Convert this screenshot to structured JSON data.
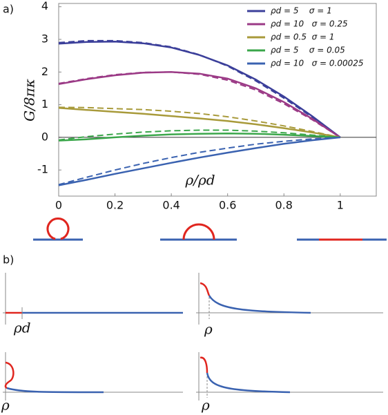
{
  "chart_data": {
    "type": "line",
    "ylabel": "G/8πκ",
    "xlabel": "ρ/ρd",
    "x": [
      0,
      0.1,
      0.2,
      0.3,
      0.4,
      0.5,
      0.6,
      0.7,
      0.8,
      0.9,
      1.0
    ],
    "xlim": [
      0,
      1.128
    ],
    "ylim": [
      -1.8,
      4.1
    ],
    "xticks": [
      0,
      0.2,
      0.4,
      0.6,
      0.8,
      1
    ],
    "yticks": [
      -1,
      0,
      1,
      2,
      3,
      4
    ],
    "zero_line": true,
    "series": [
      {
        "name": "ρd = 5    σ = 1",
        "color": "#3b3f9a",
        "values": [
          2.87,
          2.92,
          2.93,
          2.88,
          2.75,
          2.52,
          2.2,
          1.77,
          1.25,
          0.65,
          0
        ],
        "dashed_values": [
          2.9,
          2.96,
          2.96,
          2.9,
          2.77,
          2.53,
          2.18,
          1.73,
          1.2,
          0.62,
          0
        ]
      },
      {
        "name": "ρd = 10   σ = 0.25",
        "color": "#9b3a86",
        "values": [
          1.63,
          1.78,
          1.9,
          1.98,
          2.0,
          1.95,
          1.8,
          1.5,
          1.08,
          0.57,
          0
        ],
        "dashed_values": [
          1.65,
          1.8,
          1.92,
          1.99,
          2.0,
          1.93,
          1.75,
          1.45,
          1.03,
          0.54,
          0
        ]
      },
      {
        "name": "ρd = 0.5  σ = 1",
        "color": "#a89a3a",
        "values": [
          0.9,
          0.84,
          0.78,
          0.72,
          0.65,
          0.58,
          0.5,
          0.4,
          0.28,
          0.15,
          0
        ],
        "dashed_values": [
          0.92,
          0.91,
          0.88,
          0.85,
          0.8,
          0.73,
          0.63,
          0.5,
          0.35,
          0.18,
          0
        ]
      },
      {
        "name": "ρd = 5    σ = 0.05",
        "color": "#3aa64a",
        "values": [
          -0.1,
          -0.06,
          0.0,
          0.05,
          0.09,
          0.11,
          0.12,
          0.11,
          0.08,
          0.04,
          0
        ],
        "dashed_values": [
          -0.08,
          0.02,
          0.1,
          0.16,
          0.2,
          0.22,
          0.22,
          0.19,
          0.14,
          0.07,
          0
        ]
      },
      {
        "name": "ρd = 10   σ = 0.00025",
        "color": "#3a62b0",
        "values": [
          -1.47,
          -1.3,
          -1.12,
          -0.95,
          -0.78,
          -0.62,
          -0.47,
          -0.33,
          -0.2,
          -0.09,
          0
        ],
        "dashed_values": [
          -1.45,
          -1.22,
          -1.0,
          -0.8,
          -0.62,
          -0.46,
          -0.33,
          -0.21,
          -0.12,
          -0.05,
          0
        ]
      }
    ]
  },
  "panel_labels": [
    "a)",
    "b)"
  ],
  "panel_b_labels": [
    "ρd",
    "ρ",
    "ρ",
    "ρ"
  ]
}
